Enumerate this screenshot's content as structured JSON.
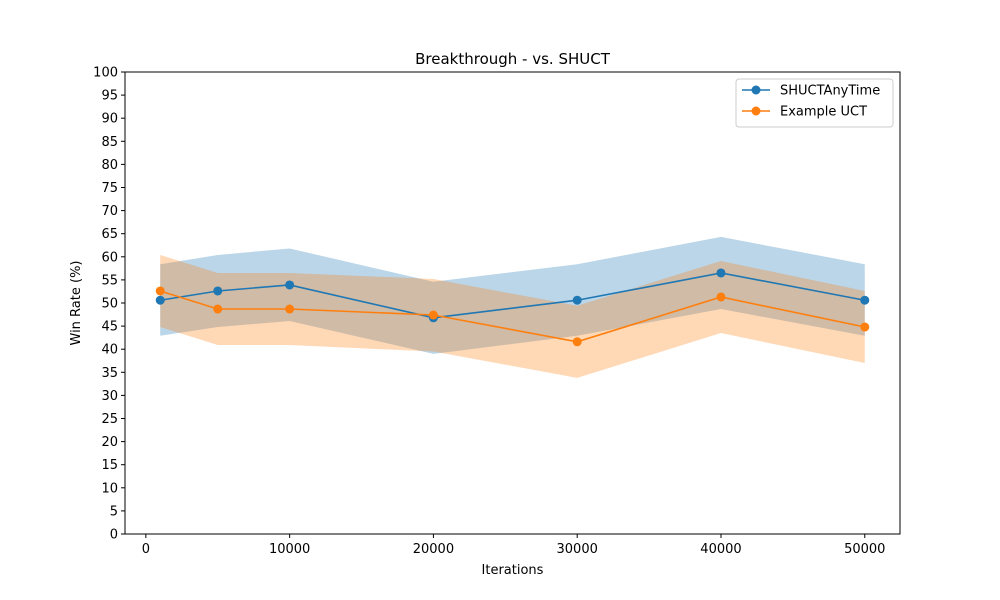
{
  "chart_data": {
    "type": "line",
    "title": "Breakthrough - vs. SHUCT",
    "xlabel": "Iterations",
    "ylabel": "Win Rate (%)",
    "xlim": [
      -1450,
      52450
    ],
    "ylim": [
      0,
      100
    ],
    "x_ticks": [
      0,
      10000,
      20000,
      30000,
      40000,
      50000
    ],
    "y_ticks": [
      0,
      5,
      10,
      15,
      20,
      25,
      30,
      35,
      40,
      45,
      50,
      55,
      60,
      65,
      70,
      75,
      80,
      85,
      90,
      95,
      100
    ],
    "grid": false,
    "legend_position": "top-right",
    "x": [
      1000,
      5000,
      10000,
      20000,
      30000,
      40000,
      50000
    ],
    "series": [
      {
        "name": "SHUCTAnyTime",
        "color": "#1f77b4",
        "values": [
          50.6,
          52.6,
          53.9,
          46.8,
          50.6,
          56.5,
          50.6
        ],
        "lower": [
          42.9,
          44.8,
          46.1,
          39.0,
          42.9,
          48.7,
          42.9
        ],
        "upper": [
          58.4,
          60.4,
          61.8,
          54.6,
          58.4,
          64.3,
          58.4
        ]
      },
      {
        "name": "Example UCT",
        "color": "#ff7f0e",
        "values": [
          52.6,
          48.7,
          48.7,
          47.4,
          41.6,
          51.3,
          44.8
        ],
        "lower": [
          44.8,
          40.9,
          40.9,
          39.5,
          33.8,
          43.5,
          37.0
        ],
        "upper": [
          60.4,
          56.5,
          56.5,
          55.2,
          49.4,
          59.1,
          52.6
        ]
      }
    ]
  }
}
